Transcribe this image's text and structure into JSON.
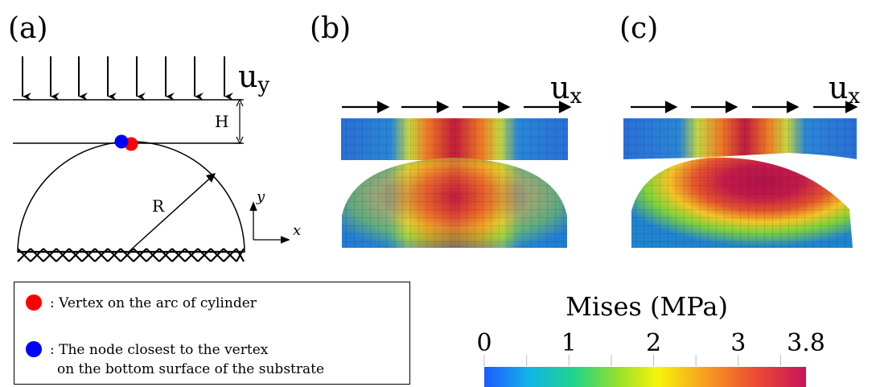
{
  "panels": {
    "a": {
      "label": "(a)",
      "load_label": "u",
      "load_sub": "y",
      "height_label": "H",
      "radius_label": "R",
      "axis_y": "y",
      "axis_x": "x"
    },
    "b": {
      "label": "(b)",
      "load_label": "u",
      "load_sub": "x"
    },
    "c": {
      "label": "(c)",
      "load_label": "u",
      "load_sub": "x"
    }
  },
  "legend": {
    "items": [
      {
        "color": "#ff0000",
        "text": ": Vertex on the arc of cylinder"
      },
      {
        "color": "#0000ff",
        "text_line1": ": The node closest to the vertex",
        "text_line2": "on the bottom surface of the substrate"
      }
    ]
  },
  "colorbar": {
    "title": "Mises (MPa)",
    "ticks": [
      "0",
      "1",
      "2",
      "3",
      "3.8"
    ],
    "tick_values": [
      0,
      1,
      2,
      3,
      3.8
    ],
    "min": 0,
    "max": 3.8,
    "colors": [
      "#1e5bff",
      "#11b5e6",
      "#1fd48a",
      "#9be02a",
      "#f6f50a",
      "#f7a21e",
      "#ec4d32",
      "#c8145a"
    ]
  }
}
